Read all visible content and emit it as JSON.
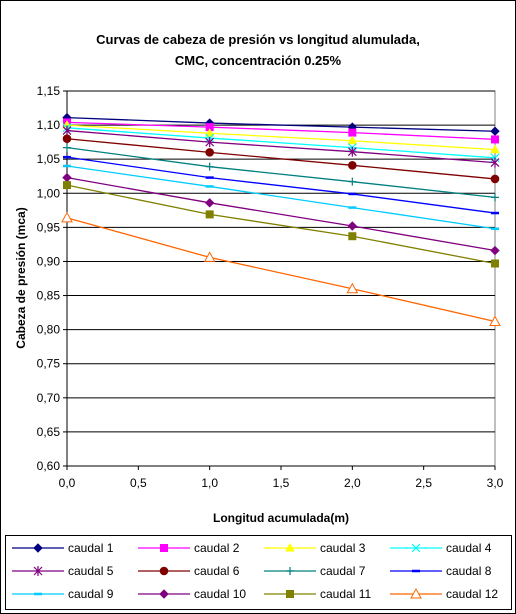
{
  "chart_data": {
    "type": "line",
    "title_lines": [
      "Curvas de cabeza de presión vs longitud alumulada,",
      "CMC, concentración 0.25%"
    ],
    "xlabel": "Longitud acumulada(m)",
    "ylabel": "Cabeza de presión (mca)",
    "xlim": [
      0,
      3
    ],
    "ylim": [
      0.6,
      1.15
    ],
    "x_ticks": [
      "0,0",
      "0,5",
      "1,0",
      "1,5",
      "2,0",
      "2,5",
      "3,0"
    ],
    "y_ticks": [
      "0,60",
      "0,65",
      "0,70",
      "0,75",
      "0,80",
      "0,85",
      "0,90",
      "0,95",
      "1,00",
      "1,05",
      "1,10",
      "1,15"
    ],
    "grid": "horizontal",
    "legend_position": "bottom",
    "x": [
      0,
      1,
      2,
      3
    ],
    "series": [
      {
        "name": "caudal 1",
        "color": "#000080",
        "marker": "diamond",
        "values": [
          1.111,
          1.103,
          1.097,
          1.091
        ]
      },
      {
        "name": "caudal 2",
        "color": "#ff00ff",
        "marker": "square",
        "values": [
          1.104,
          1.097,
          1.089,
          1.079
        ]
      },
      {
        "name": "caudal 3",
        "color": "#ffff00",
        "marker": "triangle",
        "values": [
          1.1,
          1.088,
          1.077,
          1.064
        ]
      },
      {
        "name": "caudal 4",
        "color": "#00ffff",
        "marker": "x",
        "values": [
          1.096,
          1.081,
          1.067,
          1.052
        ]
      },
      {
        "name": "caudal 5",
        "color": "#800080",
        "marker": "star",
        "values": [
          1.092,
          1.075,
          1.061,
          1.045
        ]
      },
      {
        "name": "caudal 6",
        "color": "#800000",
        "marker": "circle",
        "values": [
          1.08,
          1.06,
          1.041,
          1.021
        ]
      },
      {
        "name": "caudal 7",
        "color": "#008080",
        "marker": "plus",
        "values": [
          1.067,
          1.039,
          1.017,
          0.994
        ]
      },
      {
        "name": "caudal 8",
        "color": "#0000ff",
        "marker": "dash",
        "values": [
          1.053,
          1.023,
          0.999,
          0.971
        ]
      },
      {
        "name": "caudal 9",
        "color": "#00ccff",
        "marker": "dash",
        "values": [
          1.04,
          1.01,
          0.979,
          0.948
        ]
      },
      {
        "name": "caudal 10",
        "color": "#800080",
        "marker": "diamond",
        "values": [
          1.023,
          0.986,
          0.952,
          0.916
        ]
      },
      {
        "name": "caudal 11",
        "color": "#808000",
        "marker": "square",
        "values": [
          1.012,
          0.969,
          0.937,
          0.897
        ]
      },
      {
        "name": "caudal 12",
        "color": "#ff6600",
        "marker": "triangle-open",
        "values": [
          0.964,
          0.906,
          0.86,
          0.812
        ]
      }
    ]
  }
}
